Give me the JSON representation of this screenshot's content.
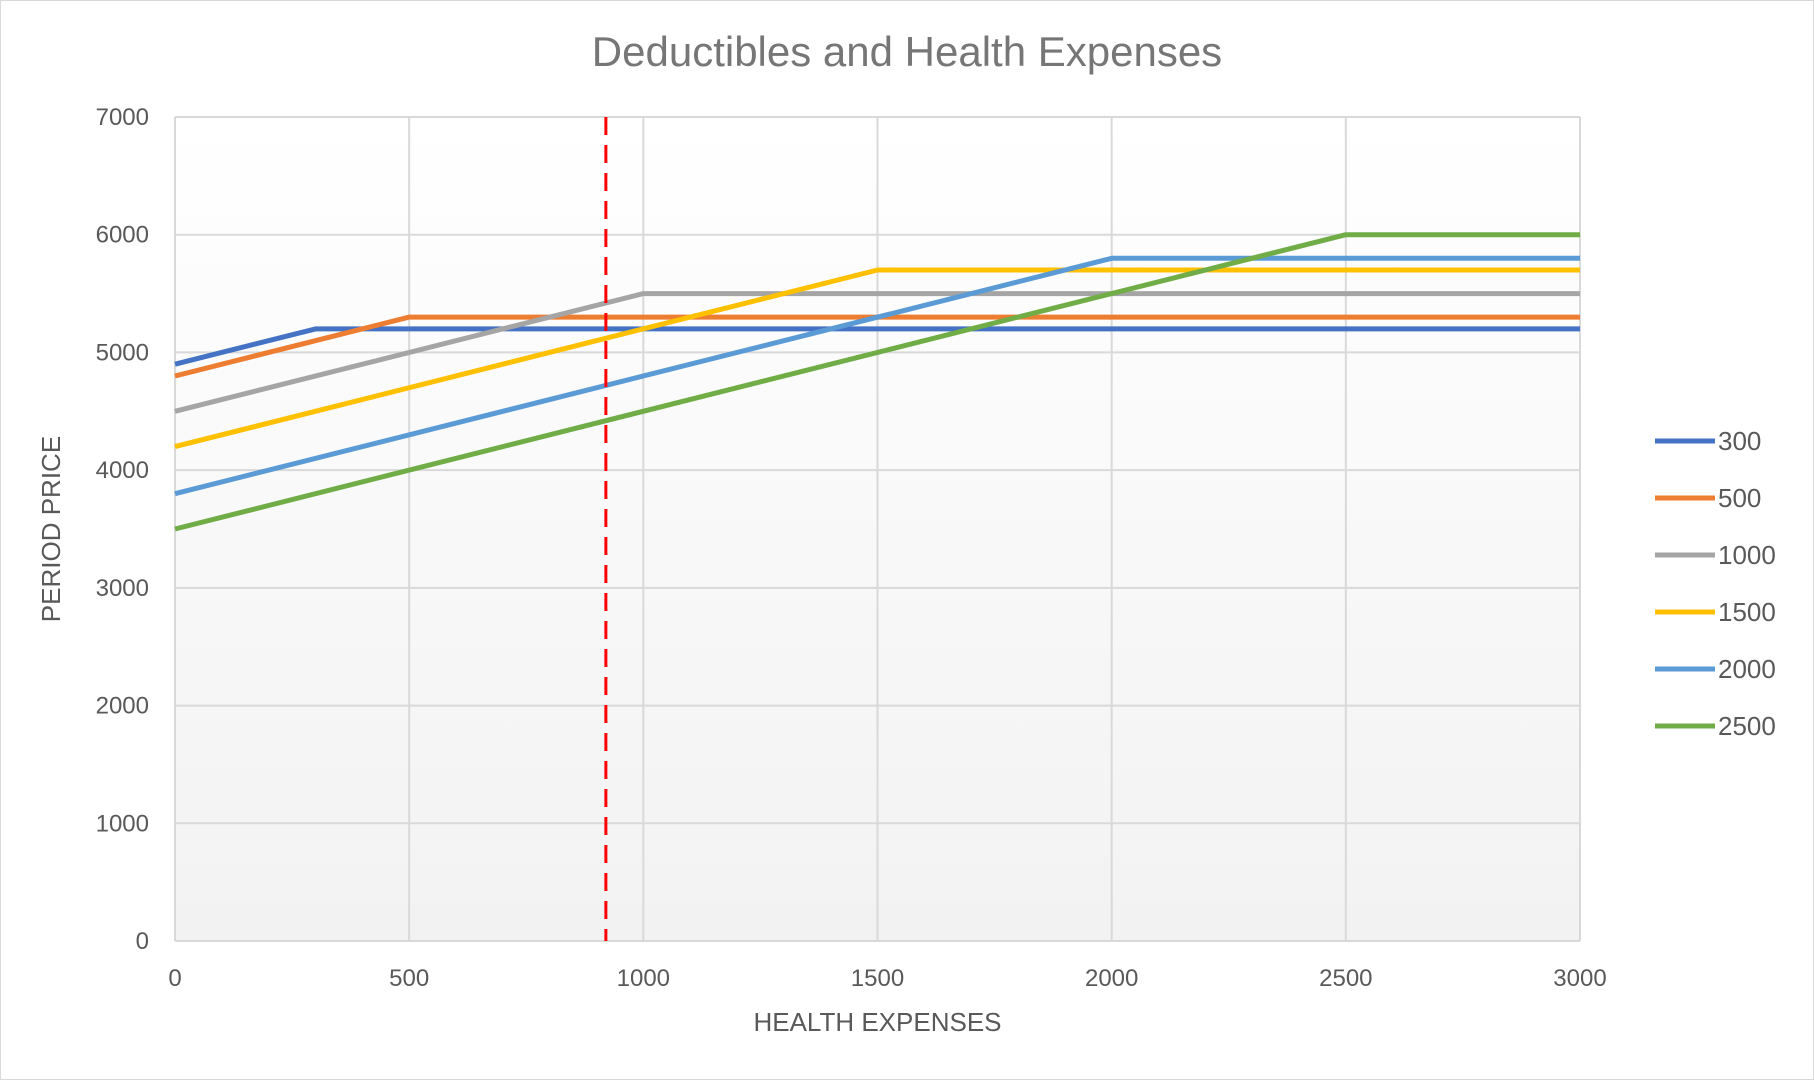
{
  "chart_data": {
    "type": "line",
    "title": "Deductibles and Health Expenses",
    "xlabel": "HEALTH EXPENSES",
    "ylabel": "PERIOD PRICE",
    "xlim": [
      0,
      3000
    ],
    "ylim": [
      0,
      7000
    ],
    "x_ticks": [
      0,
      500,
      1000,
      1500,
      2000,
      2500,
      3000
    ],
    "y_ticks": [
      0,
      1000,
      2000,
      3000,
      4000,
      5000,
      6000,
      7000
    ],
    "x_tick_labels": [
      "0",
      "500",
      "1000",
      "1500",
      "2000",
      "2500",
      "3000"
    ],
    "y_tick_labels": [
      "0",
      "1000",
      "2000",
      "3000",
      "4000",
      "5000",
      "6000",
      "7000"
    ],
    "grid": true,
    "legend_position": "right",
    "reference_line": {
      "x": 920,
      "color": "#ff0000",
      "style": "dashed"
    },
    "series": [
      {
        "name": "300",
        "color": "#4472c4",
        "points": [
          [
            0,
            4900
          ],
          [
            300,
            5200
          ],
          [
            3000,
            5200
          ]
        ]
      },
      {
        "name": "500",
        "color": "#ed7d31",
        "points": [
          [
            0,
            4800
          ],
          [
            500,
            5300
          ],
          [
            3000,
            5300
          ]
        ]
      },
      {
        "name": "1000",
        "color": "#a5a5a5",
        "points": [
          [
            0,
            4500
          ],
          [
            1000,
            5500
          ],
          [
            3000,
            5500
          ]
        ]
      },
      {
        "name": "1500",
        "color": "#ffc000",
        "points": [
          [
            0,
            4200
          ],
          [
            1500,
            5700
          ],
          [
            3000,
            5700
          ]
        ]
      },
      {
        "name": "2000",
        "color": "#5b9bd5",
        "points": [
          [
            0,
            3800
          ],
          [
            2000,
            5800
          ],
          [
            3000,
            5800
          ]
        ]
      },
      {
        "name": "2500",
        "color": "#70ad47",
        "points": [
          [
            0,
            3500
          ],
          [
            2500,
            6000
          ],
          [
            3000,
            6000
          ]
        ]
      }
    ]
  }
}
